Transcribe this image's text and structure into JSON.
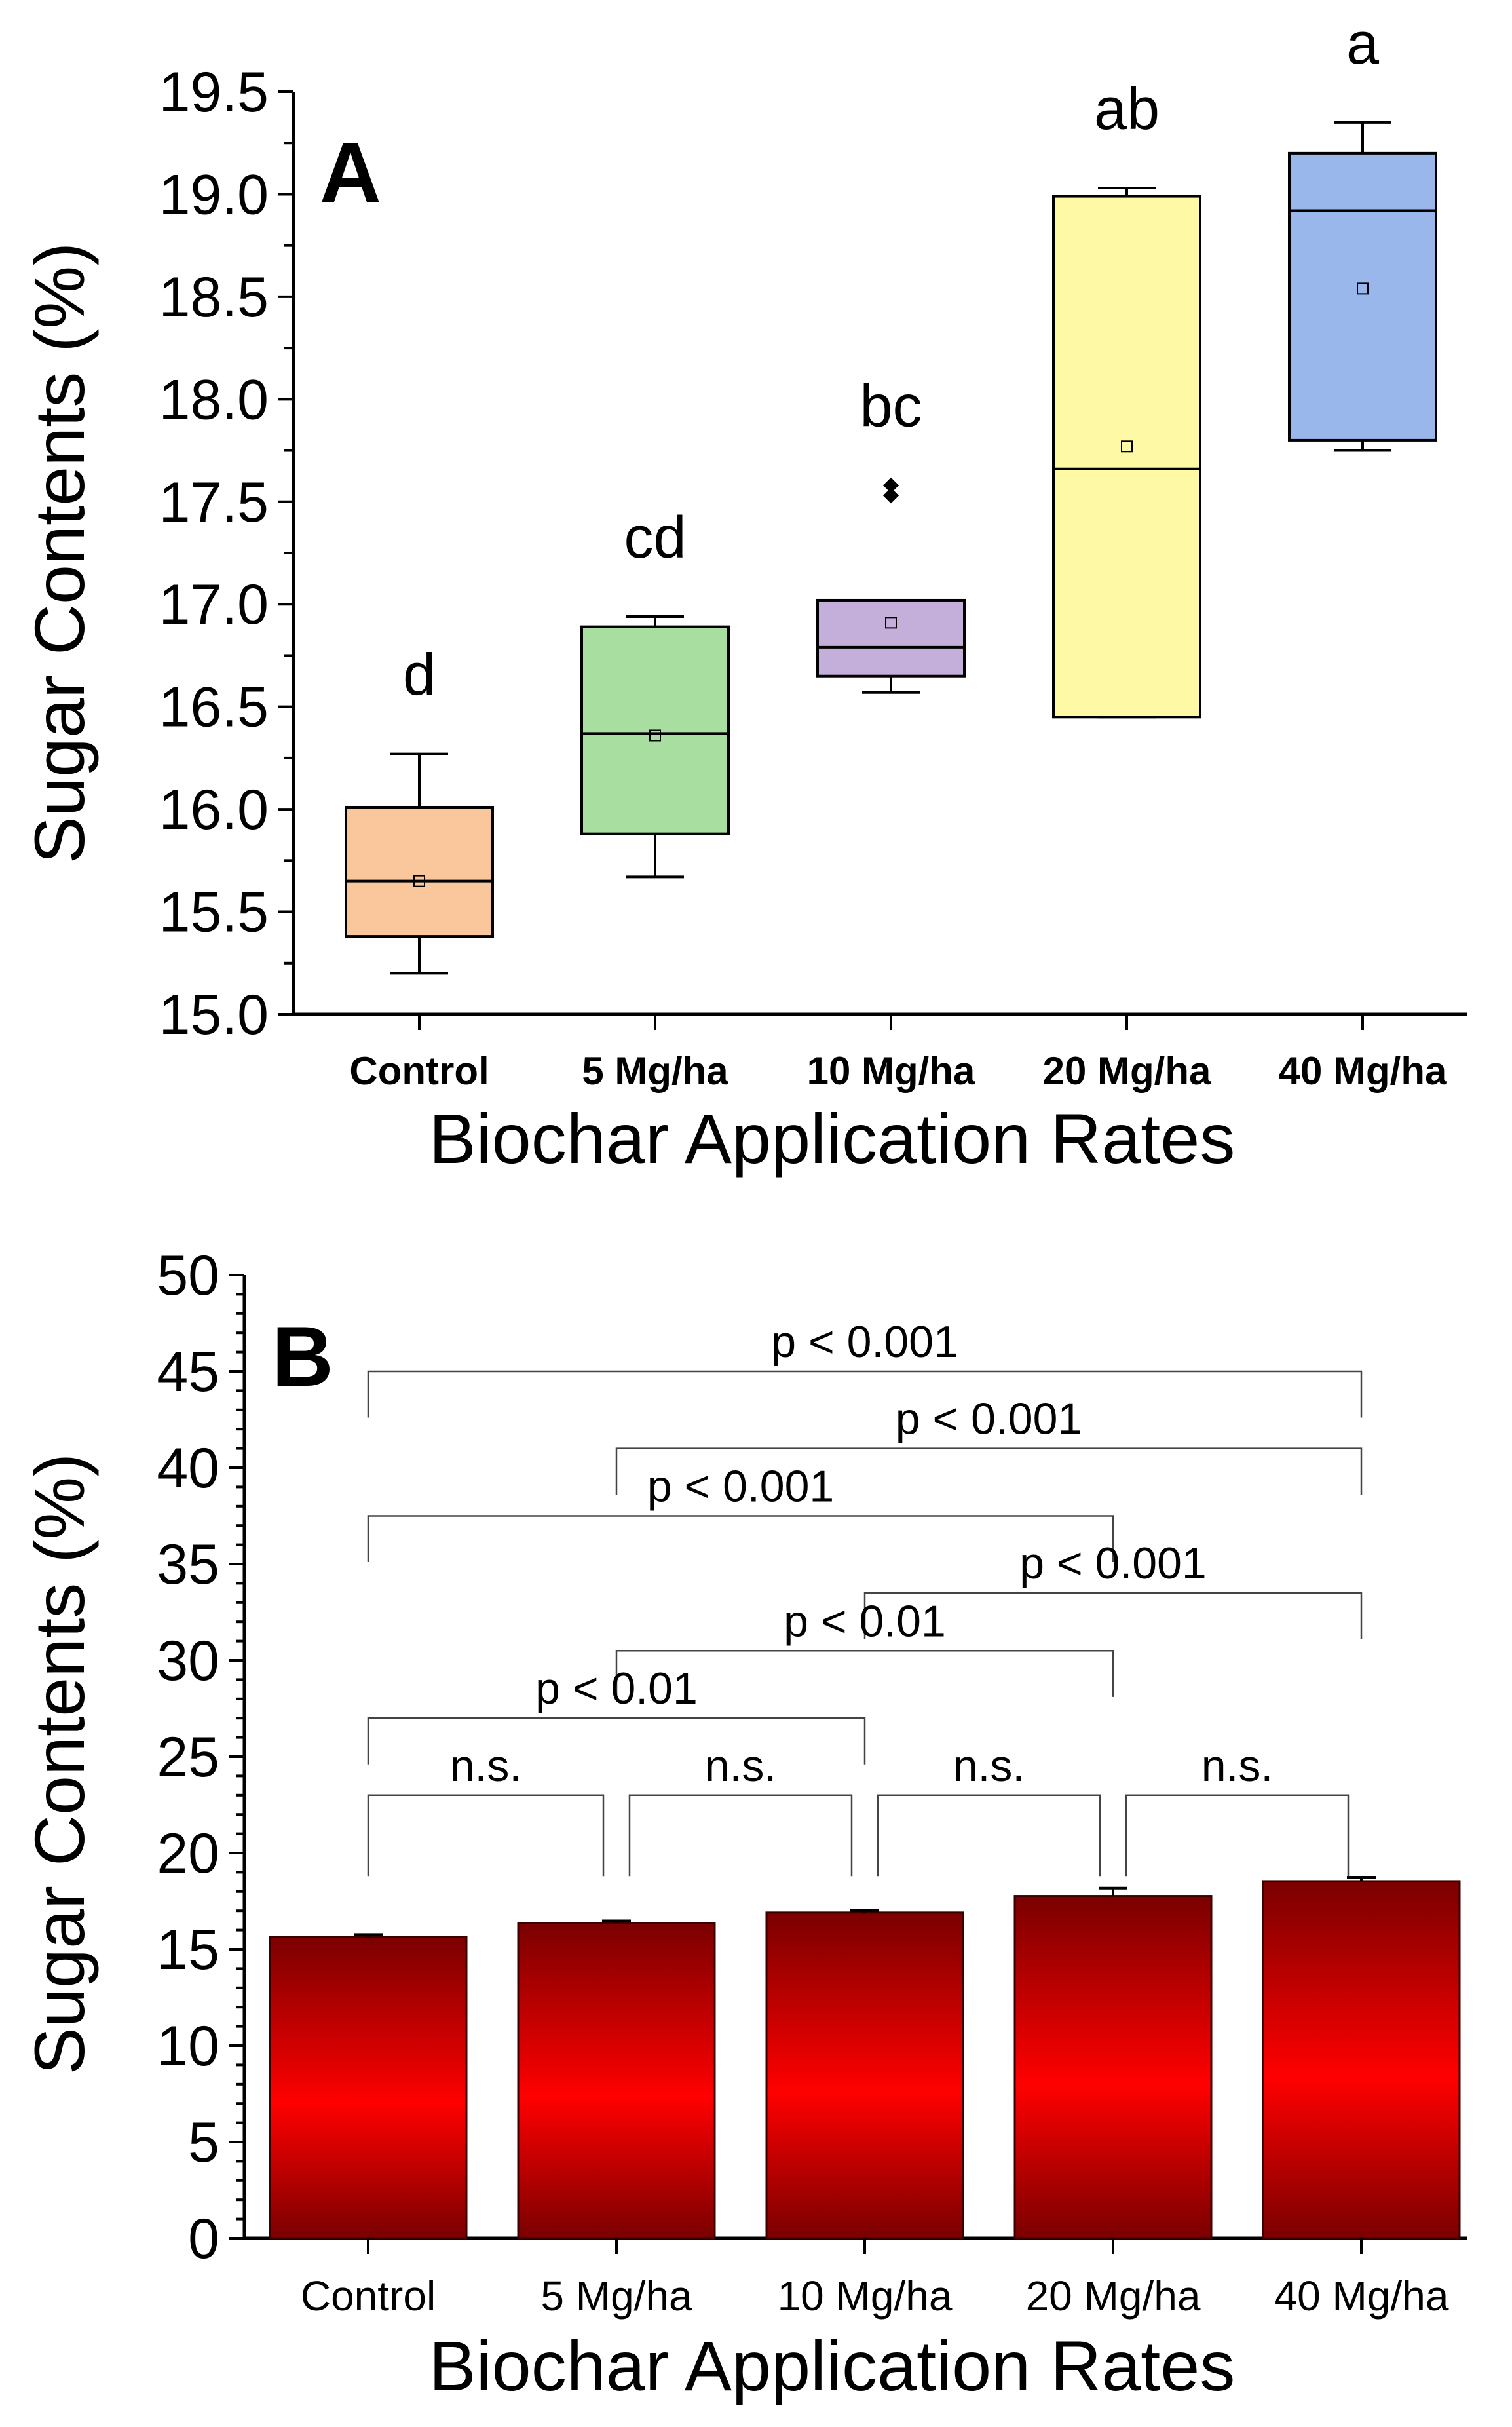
{
  "chart_data": [
    {
      "type": "box",
      "panel_label": "A",
      "ylabel": "Sugar Contents (%)",
      "xlabel": "Biochar Application Rates",
      "ylim": [
        15.0,
        19.5
      ],
      "yticks": [
        15.0,
        15.5,
        16.0,
        16.5,
        17.0,
        17.5,
        18.0,
        18.5,
        19.0,
        19.5
      ],
      "ytick_labels": [
        "15.0",
        "15.5",
        "16.0",
        "16.5",
        "17.0",
        "17.5",
        "18.0",
        "18.5",
        "19.0",
        "19.5"
      ],
      "categories": [
        "Control",
        "5 Mg/ha",
        "10 Mg/ha",
        "20 Mg/ha",
        "40 Mg/ha"
      ],
      "boxes": [
        {
          "category": "Control",
          "whisker_low": 15.2,
          "q1": 15.38,
          "median": 15.65,
          "mean": 15.65,
          "q3": 16.01,
          "whisker_high": 16.27,
          "outliers": [],
          "color": "#f9c79b",
          "letter": "d"
        },
        {
          "category": "5 Mg/ha",
          "whisker_low": 15.67,
          "q1": 15.88,
          "median": 16.37,
          "mean": 16.36,
          "q3": 16.89,
          "whisker_high": 16.94,
          "outliers": [],
          "color": "#a8dfa0",
          "letter": "cd"
        },
        {
          "category": "10 Mg/ha",
          "whisker_low": 16.57,
          "q1": 16.65,
          "median": 16.79,
          "mean": 16.91,
          "q3": 17.02,
          "whisker_high": 17.02,
          "outliers": [
            17.53,
            17.58
          ],
          "color": "#c3afd9",
          "letter": "bc"
        },
        {
          "category": "20 Mg/ha",
          "whisker_low": 16.45,
          "q1": 16.45,
          "median": 17.66,
          "mean": 17.77,
          "q3": 18.99,
          "whisker_high": 19.03,
          "outliers": [],
          "color": "#fdf9a4",
          "letter": "ab"
        },
        {
          "category": "40 Mg/ha",
          "whisker_low": 17.75,
          "q1": 17.8,
          "median": 18.92,
          "mean": 18.54,
          "q3": 19.2,
          "whisker_high": 19.35,
          "outliers": [],
          "color": "#9ab7ec",
          "letter": "a"
        }
      ]
    },
    {
      "type": "bar",
      "panel_label": "B",
      "ylabel": "Sugar Contents (%)",
      "xlabel": "Biochar Application Rates",
      "ylim": [
        0,
        50
      ],
      "yticks": [
        0,
        5,
        10,
        15,
        20,
        25,
        30,
        35,
        40,
        45,
        50
      ],
      "categories": [
        "Control",
        "5 Mg/ha",
        "10 Mg/ha",
        "20 Mg/ha",
        "40 Mg/ha"
      ],
      "values": [
        15.65,
        16.36,
        16.91,
        17.77,
        18.54
      ],
      "errors": [
        0.12,
        0.12,
        0.1,
        0.4,
        0.2
      ],
      "bar_colors": {
        "edge": "#7a0000",
        "center": "#ff0000"
      },
      "comparisons": [
        {
          "from": 0,
          "to": 4,
          "y": 45,
          "label": "p < 0.001"
        },
        {
          "from": 1,
          "to": 4,
          "y": 41,
          "label": "p < 0.001"
        },
        {
          "from": 0,
          "to": 3,
          "y": 37.5,
          "label": "p < 0.001"
        },
        {
          "from": 2,
          "to": 4,
          "y": 33.5,
          "label": "p < 0.001"
        },
        {
          "from": 1,
          "to": 3,
          "y": 30.5,
          "label": "p < 0.01"
        },
        {
          "from": 0,
          "to": 2,
          "y": 27,
          "label": "p < 0.01"
        },
        {
          "from": 0,
          "to": 1,
          "y": 23,
          "label": "n.s."
        },
        {
          "from": 1,
          "to": 2,
          "y": 23,
          "label": "n.s."
        },
        {
          "from": 2,
          "to": 3,
          "y": 23,
          "label": "n.s."
        },
        {
          "from": 3,
          "to": 4,
          "y": 23,
          "label": "n.s."
        }
      ]
    }
  ]
}
